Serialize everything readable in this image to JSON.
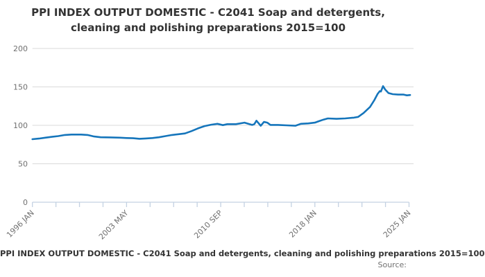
{
  "title": "PPI INDEX OUTPUT DOMESTIC - C2041 Soap and detergents, cleaning and polishing preparations 2015=100",
  "caption": "PPI INDEX OUTPUT DOMESTIC - C2041 Soap and detergents, cleaning and polishing preparations 2015=100",
  "source_label": "Source:",
  "colors": {
    "line": "#1575bb",
    "grid": "#d9d9d9",
    "axis": "#c3d1e2",
    "tick_text": "#707070",
    "title_text": "#333333"
  },
  "chart_data": {
    "type": "line",
    "title": "PPI INDEX OUTPUT DOMESTIC - C2041 Soap and detergents, cleaning and polishing preparations 2015=100",
    "xlabel": "",
    "ylabel": "",
    "ylim": [
      0,
      200
    ],
    "y_ticks": [
      0,
      50,
      100,
      150,
      200
    ],
    "x_tick_labels": [
      "1996 JAN",
      "2003 MAY",
      "2010 SEP",
      "2018 JAN",
      "2025 JAN"
    ],
    "x_minor_ticks_between_labels": 3,
    "x_range": [
      "1996-01",
      "2025-02"
    ],
    "grid": "horizontal",
    "legend_position": "none",
    "series": [
      {
        "name": "PPI INDEX OUTPUT DOMESTIC - C2041 Soap and detergents, cleaning and polishing preparations 2015=100",
        "points": [
          [
            "1996-01",
            82
          ],
          [
            "1996-07",
            82.8
          ],
          [
            "1997-01",
            84
          ],
          [
            "1997-07",
            85
          ],
          [
            "1998-01",
            86
          ],
          [
            "1998-07",
            87.5
          ],
          [
            "1999-01",
            88
          ],
          [
            "1999-10",
            88
          ],
          [
            "2000-04",
            87.5
          ],
          [
            "2000-10",
            85.5
          ],
          [
            "2001-04",
            84.5
          ],
          [
            "2002-01",
            84.3
          ],
          [
            "2002-10",
            84
          ],
          [
            "2003-04",
            83.5
          ],
          [
            "2003-10",
            83.2
          ],
          [
            "2004-04",
            82.5
          ],
          [
            "2004-10",
            83
          ],
          [
            "2005-04",
            83.5
          ],
          [
            "2005-10",
            84.5
          ],
          [
            "2006-04",
            86
          ],
          [
            "2006-10",
            87.5
          ],
          [
            "2007-04",
            88.5
          ],
          [
            "2007-10",
            89.5
          ],
          [
            "2008-04",
            92.5
          ],
          [
            "2008-10",
            96
          ],
          [
            "2009-04",
            99
          ],
          [
            "2009-10",
            100.8
          ],
          [
            "2010-04",
            102
          ],
          [
            "2010-09",
            100.3
          ],
          [
            "2011-01",
            101.5
          ],
          [
            "2011-09",
            101.5
          ],
          [
            "2012-05",
            103.5
          ],
          [
            "2012-12",
            100.5
          ],
          [
            "2013-02",
            101.5
          ],
          [
            "2013-04",
            106
          ],
          [
            "2013-08",
            99.5
          ],
          [
            "2013-11",
            104.5
          ],
          [
            "2014-02",
            103.5
          ],
          [
            "2014-05",
            100.5
          ],
          [
            "2014-12",
            100.5
          ],
          [
            "2015-08",
            100
          ],
          [
            "2016-04",
            99.5
          ],
          [
            "2016-09",
            102
          ],
          [
            "2017-04",
            102.5
          ],
          [
            "2017-10",
            103.5
          ],
          [
            "2018-01",
            105
          ],
          [
            "2018-06",
            107.5
          ],
          [
            "2018-10",
            109
          ],
          [
            "2019-06",
            108.5
          ],
          [
            "2020-02",
            109
          ],
          [
            "2020-10",
            110
          ],
          [
            "2021-02",
            111
          ],
          [
            "2021-07",
            116
          ],
          [
            "2022-01",
            124
          ],
          [
            "2022-05",
            133
          ],
          [
            "2022-08",
            141
          ],
          [
            "2022-10",
            144.5
          ],
          [
            "2022-11",
            144
          ],
          [
            "2023-01",
            151
          ],
          [
            "2023-03",
            146.5
          ],
          [
            "2023-06",
            142
          ],
          [
            "2023-10",
            140.5
          ],
          [
            "2024-03",
            140
          ],
          [
            "2024-08",
            140
          ],
          [
            "2024-11",
            139
          ],
          [
            "2025-02",
            139.5
          ]
        ]
      }
    ]
  }
}
